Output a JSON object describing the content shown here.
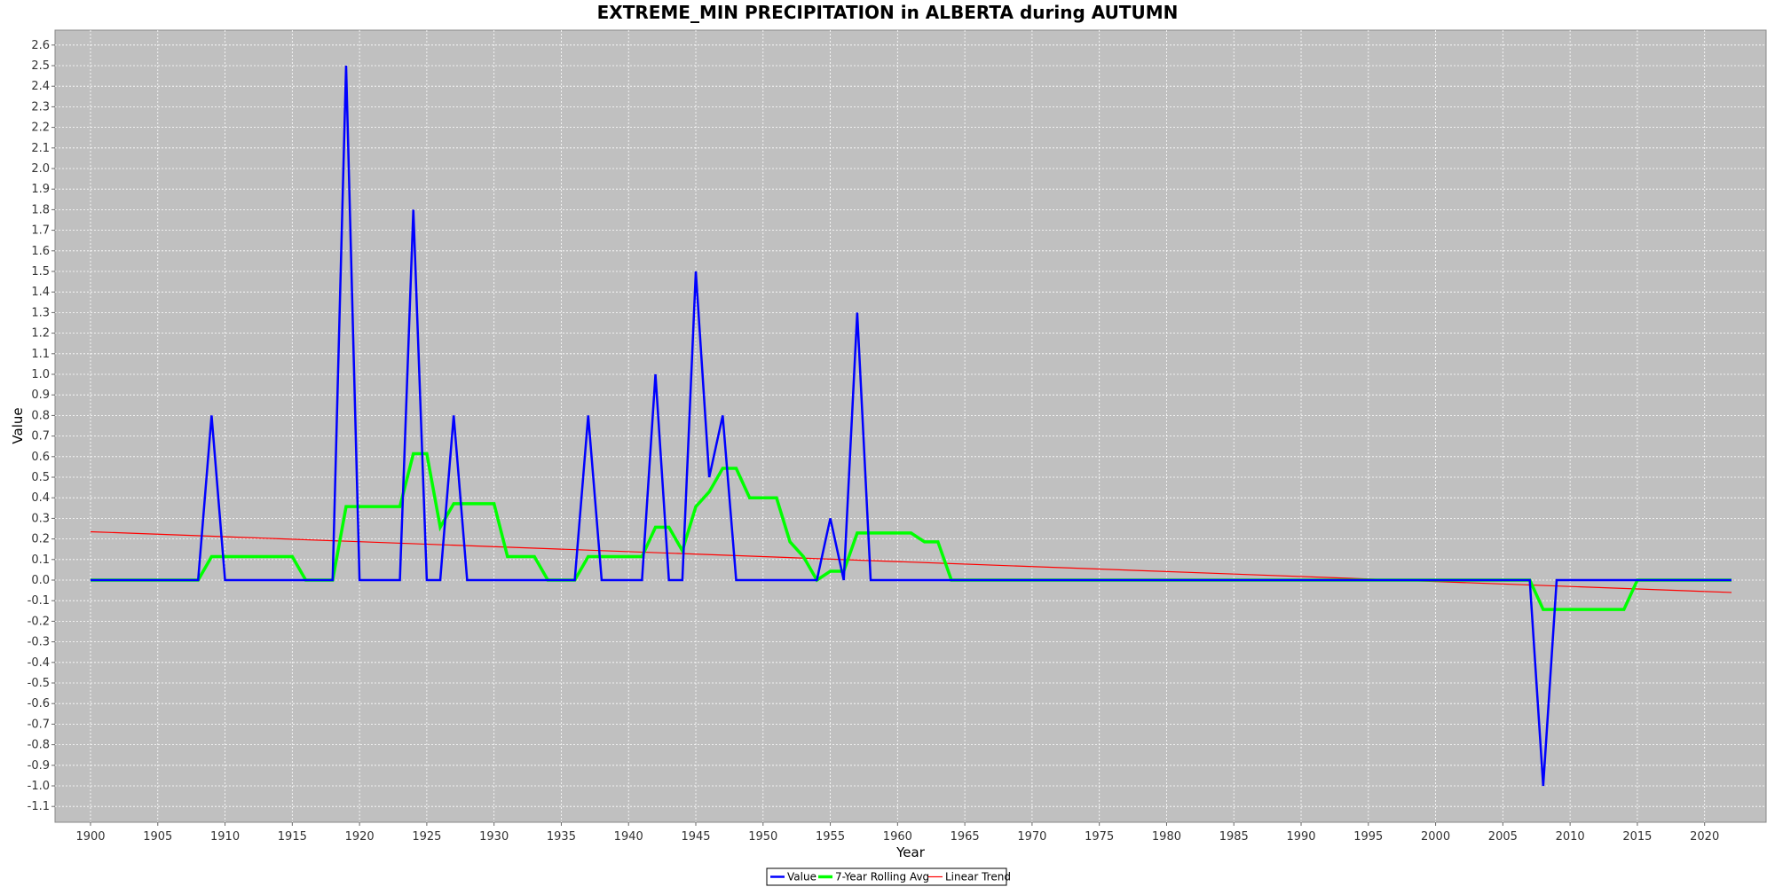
{
  "chart_data": {
    "type": "line",
    "title": "EXTREME_MIN PRECIPITATION in ALBERTA during AUTUMN",
    "xlabel": "Year",
    "ylabel": "Value",
    "xlim": [
      1900,
      2022
    ],
    "ylim": [
      -1.1,
      2.6
    ],
    "x_ticks": [
      "1900",
      "1905",
      "1910",
      "1915",
      "1920",
      "1925",
      "1930",
      "1935",
      "1940",
      "1945",
      "1950",
      "1955",
      "1960",
      "1965",
      "1970",
      "1975",
      "1980",
      "1985",
      "1990",
      "1995",
      "2000",
      "2005",
      "2010",
      "2015",
      "2020"
    ],
    "y_ticks": [
      "-1.1",
      "-1.0",
      "-0.9",
      "-0.8",
      "-0.7",
      "-0.6",
      "-0.5",
      "-0.4",
      "-0.3",
      "-0.2",
      "-0.1",
      "0.0",
      "0.1",
      "0.2",
      "0.3",
      "0.4",
      "0.5",
      "0.6",
      "0.7",
      "0.8",
      "0.9",
      "1.0",
      "1.1",
      "1.2",
      "1.3",
      "1.4",
      "1.5",
      "1.6",
      "1.7",
      "1.8",
      "1.9",
      "2.0",
      "2.1",
      "2.2",
      "2.3",
      "2.4",
      "2.5",
      "2.6"
    ],
    "grid": true,
    "legend_position": "bottom-center",
    "series": [
      {
        "name": "Value",
        "color": "#0000ff",
        "points": [
          [
            1900,
            0
          ],
          [
            1908,
            0
          ],
          [
            1909,
            0.8
          ],
          [
            1910,
            0
          ],
          [
            1918,
            0
          ],
          [
            1919,
            2.5
          ],
          [
            1920,
            0
          ],
          [
            1923,
            0
          ],
          [
            1924,
            1.8
          ],
          [
            1925,
            0
          ],
          [
            1926,
            0
          ],
          [
            1927,
            0.8
          ],
          [
            1928,
            0
          ],
          [
            1936,
            0
          ],
          [
            1937,
            0.8
          ],
          [
            1938,
            0
          ],
          [
            1941,
            0
          ],
          [
            1942,
            1.0
          ],
          [
            1943,
            0
          ],
          [
            1944,
            0
          ],
          [
            1945,
            1.5
          ],
          [
            1946,
            0.5
          ],
          [
            1947,
            0.8
          ],
          [
            1948,
            0
          ],
          [
            1954,
            0
          ],
          [
            1955,
            0.3
          ],
          [
            1956,
            0
          ],
          [
            1957,
            1.3
          ],
          [
            1958,
            0
          ],
          [
            2007,
            0
          ],
          [
            2008,
            -1.0
          ],
          [
            2009,
            0
          ],
          [
            2022,
            0
          ]
        ]
      },
      {
        "name": "7-Year Rolling Avg",
        "color": "#00ff00",
        "points": [
          [
            1900,
            0
          ],
          [
            1908,
            0
          ],
          [
            1909,
            0.114
          ],
          [
            1915,
            0.114
          ],
          [
            1916,
            0
          ],
          [
            1918,
            0
          ],
          [
            1919,
            0.357
          ],
          [
            1923,
            0.357
          ],
          [
            1924,
            0.614
          ],
          [
            1925,
            0.614
          ],
          [
            1926,
            0.257
          ],
          [
            1927,
            0.371
          ],
          [
            1930,
            0.371
          ],
          [
            1931,
            0.114
          ],
          [
            1933,
            0.114
          ],
          [
            1934,
            0
          ],
          [
            1936,
            0
          ],
          [
            1937,
            0.114
          ],
          [
            1941,
            0.114
          ],
          [
            1942,
            0.257
          ],
          [
            1943,
            0.257
          ],
          [
            1944,
            0.143
          ],
          [
            1945,
            0.357
          ],
          [
            1946,
            0.429
          ],
          [
            1947,
            0.543
          ],
          [
            1948,
            0.543
          ],
          [
            1949,
            0.4
          ],
          [
            1951,
            0.4
          ],
          [
            1952,
            0.186
          ],
          [
            1953,
            0.114
          ],
          [
            1954,
            0
          ],
          [
            1955,
            0.043
          ],
          [
            1956,
            0.043
          ],
          [
            1957,
            0.229
          ],
          [
            1961,
            0.229
          ],
          [
            1962,
            0.186
          ],
          [
            1963,
            0.186
          ],
          [
            1964,
            0
          ],
          [
            2007,
            0
          ],
          [
            2008,
            -0.143
          ],
          [
            2014,
            -0.143
          ],
          [
            2015,
            0
          ],
          [
            2022,
            0
          ]
        ]
      },
      {
        "name": "Linear Trend",
        "color": "#ff0000",
        "points": [
          [
            1900,
            0.235
          ],
          [
            2022,
            -0.06
          ]
        ]
      }
    ]
  }
}
